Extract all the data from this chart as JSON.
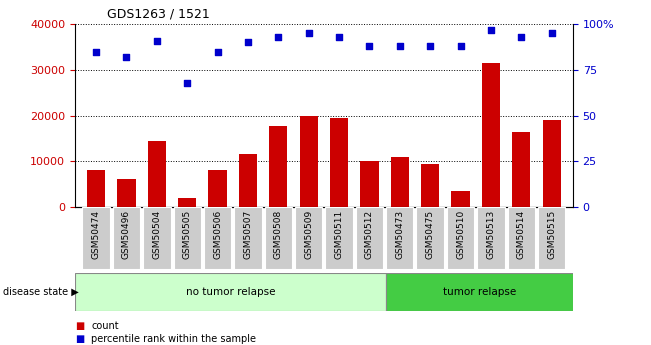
{
  "title": "GDS1263 / 1521",
  "samples": [
    "GSM50474",
    "GSM50496",
    "GSM50504",
    "GSM50505",
    "GSM50506",
    "GSM50507",
    "GSM50508",
    "GSM50509",
    "GSM50511",
    "GSM50512",
    "GSM50473",
    "GSM50475",
    "GSM50510",
    "GSM50513",
    "GSM50514",
    "GSM50515"
  ],
  "counts": [
    8000,
    6200,
    14500,
    2000,
    8000,
    11500,
    17800,
    20000,
    19500,
    10000,
    11000,
    9500,
    3500,
    31500,
    16500,
    19000
  ],
  "percentiles": [
    85,
    82,
    91,
    68,
    85,
    90,
    93,
    95,
    93,
    88,
    88,
    88,
    88,
    97,
    93,
    95
  ],
  "bar_color": "#cc0000",
  "dot_color": "#0000cc",
  "ylim_left": [
    0,
    40000
  ],
  "ylim_right": [
    0,
    100
  ],
  "yticks_left": [
    0,
    10000,
    20000,
    30000,
    40000
  ],
  "yticks_right": [
    0,
    25,
    50,
    75,
    100
  ],
  "no_tumor_count": 10,
  "tumor_count": 6,
  "no_tumor_label": "no tumor relapse",
  "tumor_label": "tumor relapse",
  "disease_state_label": "disease state",
  "legend_count_label": "count",
  "legend_pct_label": "percentile rank within the sample",
  "no_tumor_color": "#ccffcc",
  "tumor_color": "#44cc44",
  "bar_width": 0.6
}
